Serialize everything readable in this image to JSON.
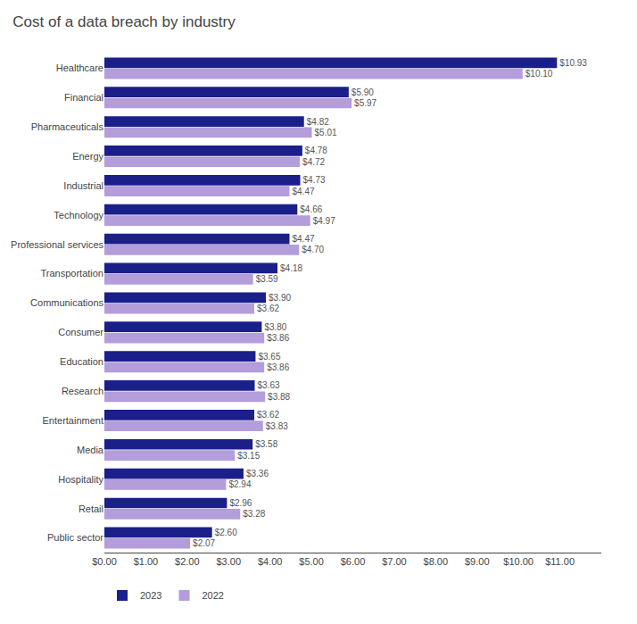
{
  "chart_data": {
    "type": "bar",
    "orientation": "horizontal",
    "title": "Cost of a data breach by industry",
    "categories": [
      "Healthcare",
      "Financial",
      "Pharmaceuticals",
      "Energy",
      "Industrial",
      "Technology",
      "Professional services",
      "Transportation",
      "Communications",
      "Consumer",
      "Education",
      "Research",
      "Entertainment",
      "Media",
      "Hospitality",
      "Retail",
      "Public sector"
    ],
    "series": [
      {
        "name": "2023",
        "color": "#1b1f8a",
        "values": [
          10.93,
          5.9,
          4.82,
          4.78,
          4.73,
          4.66,
          4.47,
          4.18,
          3.9,
          3.8,
          3.65,
          3.63,
          3.62,
          3.58,
          3.36,
          2.96,
          2.6
        ],
        "value_labels": [
          "$10.93",
          "$5.90",
          "$4.82",
          "$4.78",
          "$4.73",
          "$4.66",
          "$4.47",
          "$4.18",
          "$3.90",
          "$3.80",
          "$3.65",
          "$3.63",
          "$3.62",
          "$3.58",
          "$3.36",
          "$2.96",
          "$2.60"
        ]
      },
      {
        "name": "2022",
        "color": "#b39ddb",
        "values": [
          10.1,
          5.97,
          5.01,
          4.72,
          4.47,
          4.97,
          4.7,
          3.59,
          3.62,
          3.86,
          3.86,
          3.88,
          3.83,
          3.15,
          2.94,
          3.28,
          2.07
        ],
        "value_labels": [
          "$10.10",
          "$5.97",
          "$5.01",
          "$4.72",
          "$4.47",
          "$4.97",
          "$4.70",
          "$3.59",
          "$3.62",
          "$3.86",
          "$3.86",
          "$3.88",
          "$3.83",
          "$3.15",
          "$2.94",
          "$3.28",
          "$2.07"
        ]
      }
    ],
    "xlim": [
      0,
      12.0
    ],
    "xticks": [
      {
        "value": 0,
        "label": "$0.00"
      },
      {
        "value": 1,
        "label": "$1.00"
      },
      {
        "value": 2,
        "label": "$2.00"
      },
      {
        "value": 3,
        "label": "$3.00"
      },
      {
        "value": 4,
        "label": "$4.00"
      },
      {
        "value": 5,
        "label": "$5.00"
      },
      {
        "value": 6,
        "label": "$6.00"
      },
      {
        "value": 7,
        "label": "$7.00"
      },
      {
        "value": 8,
        "label": "$8.00"
      },
      {
        "value": 9,
        "label": "$9.00"
      },
      {
        "value": 10,
        "label": "$10.00"
      },
      {
        "value": 11,
        "label": "$11.00"
      }
    ],
    "grid": false,
    "legend": "bottom left",
    "data_labels": true
  }
}
